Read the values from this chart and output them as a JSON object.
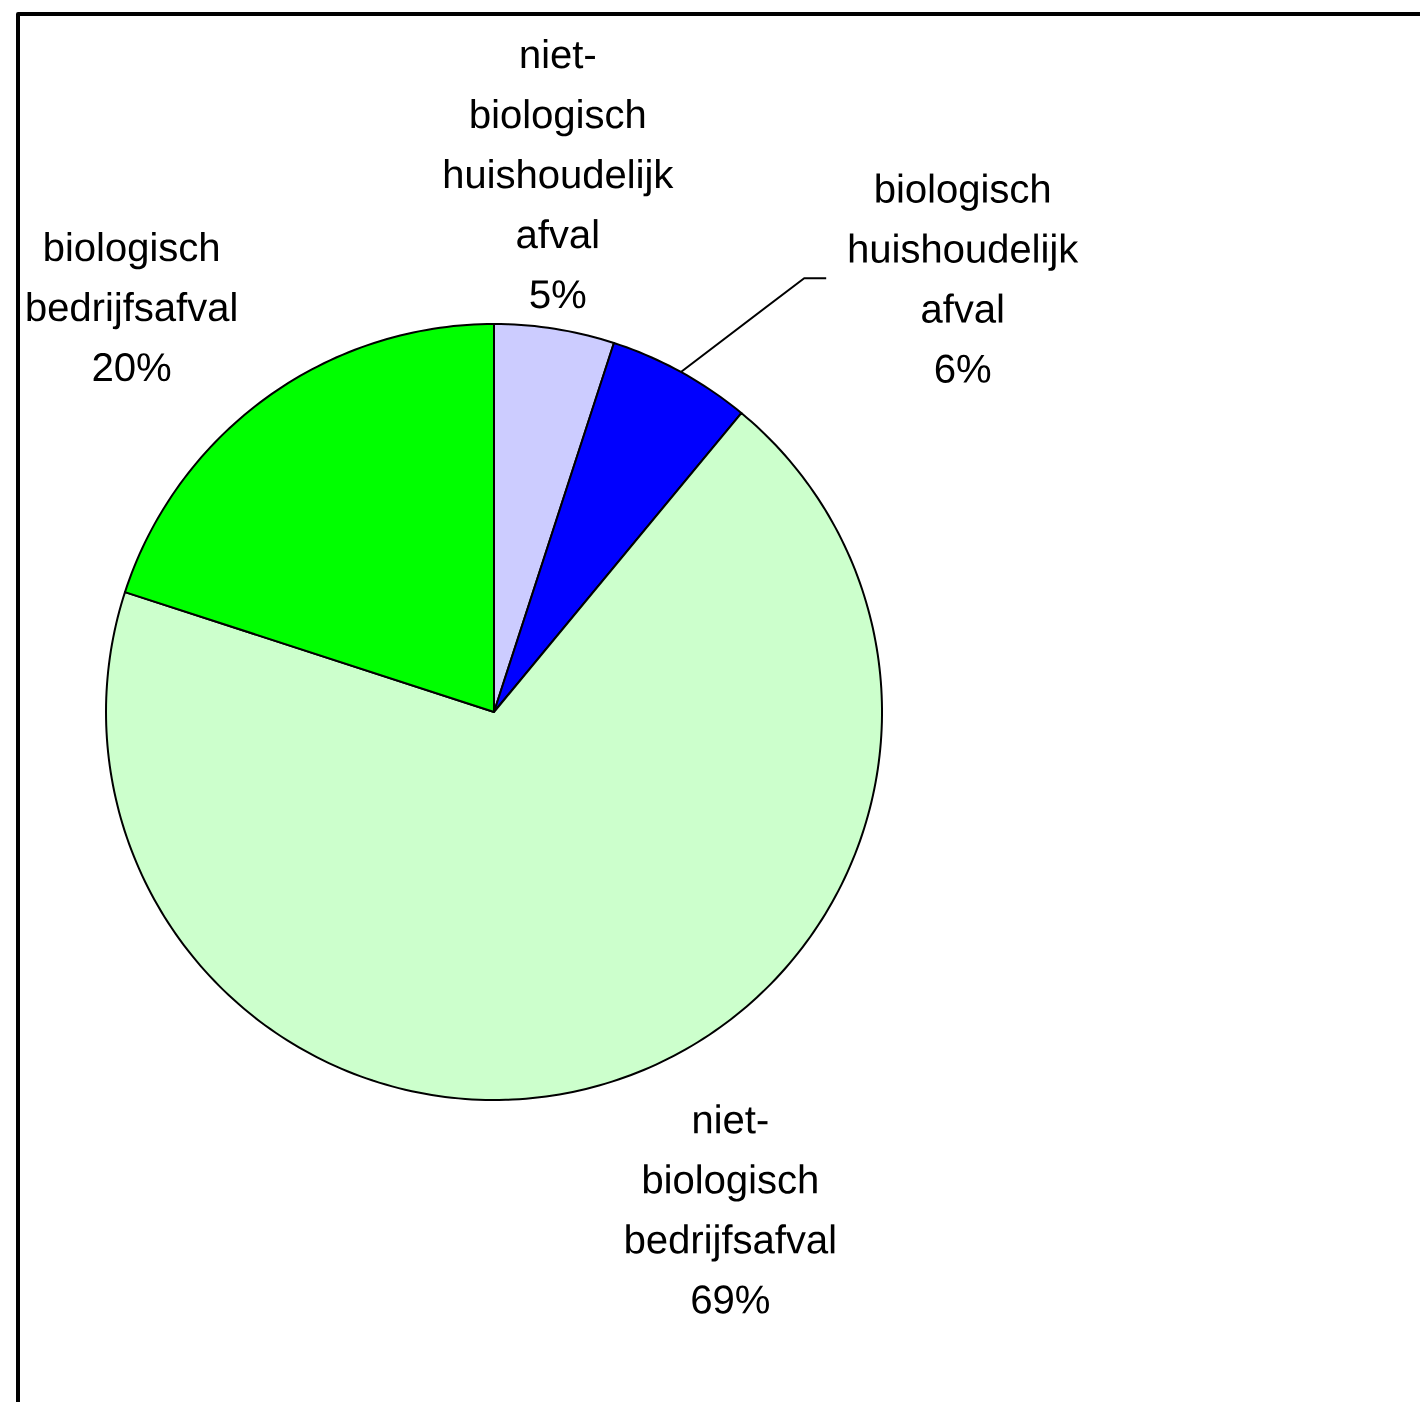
{
  "chart_data": {
    "type": "pie",
    "categories": [
      "niet-biologisch huishoudelijk afval",
      "biologisch huishoudelijk afval",
      "niet-biologisch bedrijfsafval",
      "biologisch bedrijfsafval"
    ],
    "values": [
      5,
      6,
      69,
      20
    ],
    "colors": [
      "#ccccff",
      "#0000ff",
      "#ccffcc",
      "#00ff00"
    ],
    "value_labels": [
      "5%",
      "6%",
      "69%",
      "20%"
    ]
  }
}
